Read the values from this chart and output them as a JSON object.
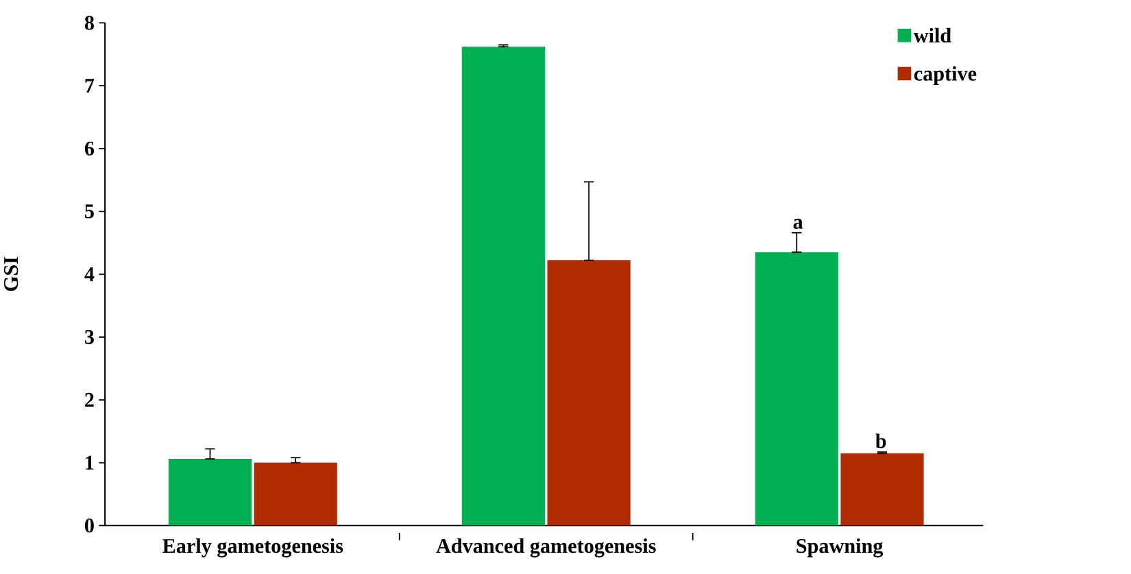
{
  "chart_data": {
    "type": "bar",
    "ylabel": "GSI",
    "categories": [
      "Early gametogenesis",
      "Advanced gametogenesis",
      "Spawning"
    ],
    "series": [
      {
        "name": "wild",
        "color": "#00b050",
        "values": [
          1.06,
          7.62,
          4.35
        ],
        "errors": [
          [
            1.06,
            1.22
          ],
          [
            7.62,
            7.65
          ],
          [
            4.35,
            4.66
          ]
        ]
      },
      {
        "name": "captive",
        "color": "#b22a00",
        "values": [
          1.0,
          4.22,
          1.15
        ],
        "errors": [
          [
            1.0,
            1.08
          ],
          [
            4.22,
            5.47
          ],
          [
            1.15,
            1.17
          ]
        ]
      }
    ],
    "ylim": [
      0,
      8
    ],
    "yticks": [
      0,
      1,
      2,
      3,
      4,
      5,
      6,
      7,
      8
    ],
    "annotations": [
      "a",
      "b"
    ],
    "legend": "top right",
    "grid": false
  }
}
